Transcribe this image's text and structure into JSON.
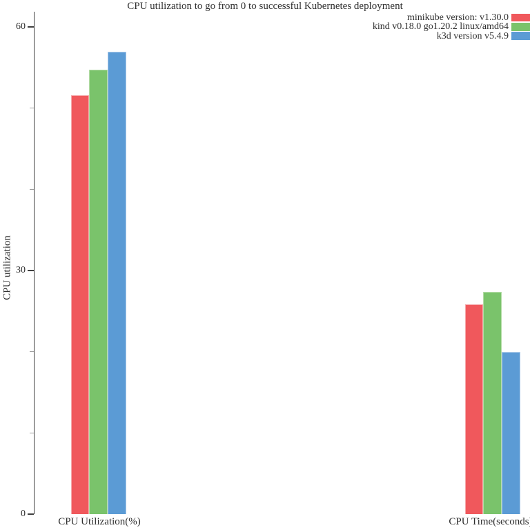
{
  "chart_data": {
    "type": "bar",
    "title": "CPU utilization to go from 0 to successful Kubernetes deployment",
    "ylabel": "CPU utilization",
    "xlabel": "",
    "categories": [
      "CPU Utilization(%)",
      "CPU Time(seconds)"
    ],
    "series": [
      {
        "name": "minikube version: v1.30.0",
        "color": "#f0585c",
        "border_color": "#f5a9ab",
        "values": [
          51.6,
          25.8
        ]
      },
      {
        "name": "kind v0.18.0 go1.20.2 linux/amd64",
        "color": "#7ac36b",
        "border_color": "#b4dca6",
        "values": [
          54.7,
          27.4
        ]
      },
      {
        "name": "k3d version v5.4.9",
        "color": "#5b9bd5",
        "border_color": "#aac9e9",
        "values": [
          56.9,
          20.0
        ]
      }
    ],
    "ylim": [
      0,
      60
    ],
    "yticks_major": [
      0,
      30,
      60
    ],
    "yticks_minor": [
      10,
      20,
      40,
      50
    ],
    "grid": false,
    "legend_position": "top-right",
    "axis_color": "#3f3f3f",
    "minor_tick_color": "#9c9c9c",
    "text_color": "#2e2e2e"
  }
}
